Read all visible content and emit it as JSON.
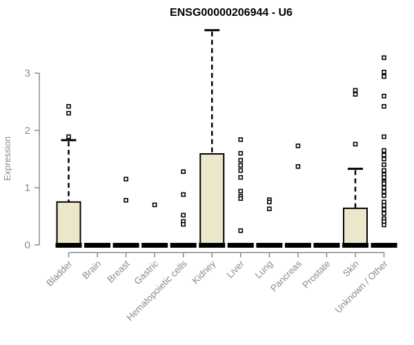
{
  "chart_data": {
    "type": "boxplot",
    "title": "ENSG00000206944 - U6",
    "ylabel": "Expression",
    "xlabel": "",
    "yticks": [
      0,
      1,
      2,
      3
    ],
    "ylim": [
      0,
      3.86
    ],
    "grid": false,
    "legend": false,
    "categories": [
      "Bladder",
      "Brain",
      "Breast",
      "Gastric",
      "Hematopoietic cells",
      "Kidney",
      "Liver",
      "Lung",
      "Pancreas",
      "Prostate",
      "Skin",
      "Unknown / Other"
    ],
    "boxes": [
      {
        "category": "Bladder",
        "q1": 0,
        "median": 0,
        "q3": 0.75,
        "whisker_low": 0,
        "whisker_high": 1.83,
        "outliers": [
          2.42,
          2.3,
          1.89
        ]
      },
      {
        "category": "Brain",
        "q1": 0,
        "median": 0,
        "q3": 0,
        "whisker_low": 0,
        "whisker_high": 0,
        "outliers": []
      },
      {
        "category": "Breast",
        "q1": 0,
        "median": 0,
        "q3": 0,
        "whisker_low": 0,
        "whisker_high": 0,
        "outliers": [
          1.15,
          0.78
        ]
      },
      {
        "category": "Gastric",
        "q1": 0,
        "median": 0,
        "q3": 0,
        "whisker_low": 0,
        "whisker_high": 0,
        "outliers": [
          0.7
        ]
      },
      {
        "category": "Hematopoietic cells",
        "q1": 0,
        "median": 0,
        "q3": 0,
        "whisker_low": 0,
        "whisker_high": 0,
        "outliers": [
          1.28,
          0.88,
          0.52,
          0.41,
          0.36
        ]
      },
      {
        "category": "Kidney",
        "q1": 0,
        "median": 0,
        "q3": 1.59,
        "whisker_low": 0,
        "whisker_high": 3.75,
        "outliers": []
      },
      {
        "category": "Liver",
        "q1": 0,
        "median": 0,
        "q3": 0,
        "whisker_low": 0,
        "whisker_high": 0,
        "outliers": [
          1.84,
          1.6,
          1.48,
          1.39,
          1.3,
          1.18,
          0.94,
          0.85,
          0.81,
          0.25
        ]
      },
      {
        "category": "Lung",
        "q1": 0,
        "median": 0,
        "q3": 0,
        "whisker_low": 0,
        "whisker_high": 0,
        "outliers": [
          0.79,
          0.75,
          0.63
        ]
      },
      {
        "category": "Pancreas",
        "q1": 0,
        "median": 0,
        "q3": 0,
        "whisker_low": 0,
        "whisker_high": 0,
        "outliers": [
          1.73,
          1.37
        ]
      },
      {
        "category": "Prostate",
        "q1": 0,
        "median": 0,
        "q3": 0,
        "whisker_low": 0,
        "whisker_high": 0,
        "outliers": []
      },
      {
        "category": "Skin",
        "q1": 0,
        "median": 0,
        "q3": 0.64,
        "whisker_low": 0,
        "whisker_high": 1.33,
        "outliers": [
          2.7,
          2.63,
          1.76
        ]
      },
      {
        "category": "Unknown / Other",
        "q1": 0,
        "median": 0,
        "q3": 0,
        "whisker_low": 0,
        "whisker_high": 0,
        "outliers": [
          3.27,
          3.02,
          2.94,
          2.6,
          2.42,
          1.89,
          1.65,
          1.57,
          1.5,
          1.4,
          1.3,
          1.23,
          1.18,
          1.1,
          1.07,
          1.0,
          0.93,
          0.86,
          0.75,
          0.69,
          0.62,
          0.55,
          0.46,
          0.41,
          0.35
        ]
      }
    ],
    "colors": {
      "background": "#ffffff",
      "box_fill": "#ECE7CB",
      "box_border": "#000000",
      "median": "#000000",
      "whisker": "#000000",
      "outlier_stroke": "#000000",
      "outlier_fill": "#ffffff",
      "axis": "#8A8A8A",
      "tick_label": "#8A8A8A",
      "title": "#000000"
    }
  }
}
